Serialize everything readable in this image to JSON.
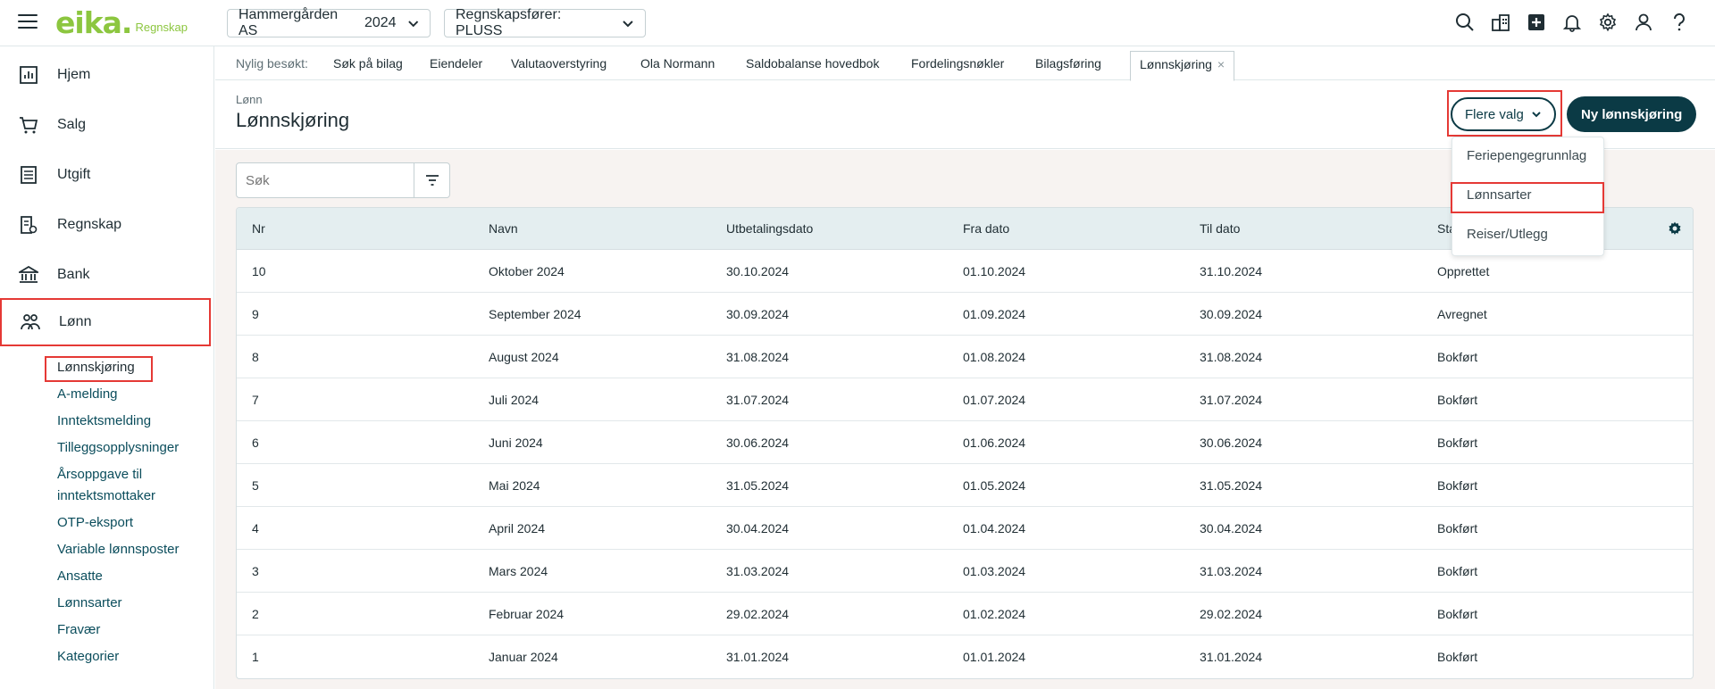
{
  "app": {
    "brand": "eika.",
    "brand_sub": "Regnskap",
    "company_selector": {
      "name": "Hammergården AS",
      "year": "2024"
    },
    "role_selector": "Regnskapsfører: PLUSS"
  },
  "top_icons": [
    "search-icon",
    "building-switch-icon",
    "plus-square-icon",
    "bell-icon",
    "gear-icon",
    "user-icon",
    "help-icon"
  ],
  "sidebar": {
    "items": [
      {
        "label": "Hjem",
        "icon": "chart-icon"
      },
      {
        "label": "Salg",
        "icon": "cart-icon"
      },
      {
        "label": "Utgift",
        "icon": "receipt-icon"
      },
      {
        "label": "Regnskap",
        "icon": "ledger-icon"
      },
      {
        "label": "Bank",
        "icon": "bank-icon"
      },
      {
        "label": "Lønn",
        "icon": "people-icon"
      }
    ],
    "sub_items": [
      "Lønnskjøring",
      "A-melding",
      "Inntektsmelding",
      "Tilleggsopplysninger",
      "Årsoppgave til",
      "inntektsmottaker",
      "OTP-eksport",
      "Variable lønnsposter",
      "Ansatte",
      "Lønnsarter",
      "Fravær",
      "Kategorier"
    ]
  },
  "tabs": {
    "lead": "Nylig besøkt:",
    "items": [
      "Søk på bilag",
      "Eiendeler",
      "Valutaoverstyring",
      "Ola Normann",
      "Saldobalanse hovedbok",
      "Fordelingsnøkler",
      "Bilagsføring",
      "Lønnskjøring"
    ],
    "close_glyph": "×"
  },
  "header": {
    "breadcrumb": "Lønn",
    "title": "Lønnskjøring",
    "more_button": "Flere valg",
    "new_button": "Ny lønnskjøring"
  },
  "search": {
    "placeholder": "Søk"
  },
  "table": {
    "columns": [
      "Nr",
      "Navn",
      "Utbetalingsdato",
      "Fra dato",
      "Til dato",
      "Sta"
    ],
    "rows": [
      [
        "10",
        "Oktober 2024",
        "30.10.2024",
        "01.10.2024",
        "31.10.2024",
        "Opprettet"
      ],
      [
        "9",
        "September 2024",
        "30.09.2024",
        "01.09.2024",
        "30.09.2024",
        "Avregnet"
      ],
      [
        "8",
        "August 2024",
        "31.08.2024",
        "01.08.2024",
        "31.08.2024",
        "Bokført"
      ],
      [
        "7",
        "Juli 2024",
        "31.07.2024",
        "01.07.2024",
        "31.07.2024",
        "Bokført"
      ],
      [
        "6",
        "Juni 2024",
        "30.06.2024",
        "01.06.2024",
        "30.06.2024",
        "Bokført"
      ],
      [
        "5",
        "Mai 2024",
        "31.05.2024",
        "01.05.2024",
        "31.05.2024",
        "Bokført"
      ],
      [
        "4",
        "April 2024",
        "30.04.2024",
        "01.04.2024",
        "30.04.2024",
        "Bokført"
      ],
      [
        "3",
        "Mars 2024",
        "31.03.2024",
        "01.03.2024",
        "31.03.2024",
        "Bokført"
      ],
      [
        "2",
        "Februar 2024",
        "29.02.2024",
        "01.02.2024",
        "29.02.2024",
        "Bokført"
      ],
      [
        "1",
        "Januar 2024",
        "31.01.2024",
        "01.01.2024",
        "31.01.2024",
        "Bokført"
      ]
    ]
  },
  "dropdown": {
    "items": [
      "Feriepengegrunnlag",
      "Lønnsarter",
      "Reiser/Utlegg"
    ]
  },
  "colors": {
    "brand": "#8cc63f",
    "primary": "#0b3a45",
    "highlight": "#e53935",
    "table_header": "#e4eef0",
    "content_bg": "#f7f3f1"
  }
}
